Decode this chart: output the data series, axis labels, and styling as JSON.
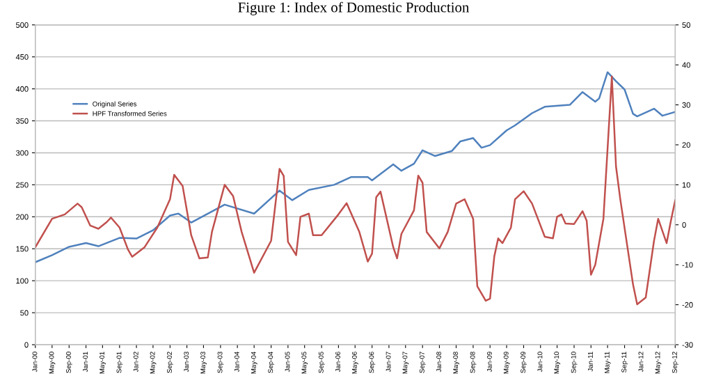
{
  "chart_data": {
    "type": "line",
    "title": "Figure 1: Index of Domestic Production",
    "xlim": [
      "2000-01",
      "2012-09"
    ],
    "xticks": [
      {
        "value": "2000-01",
        "label": "Jan-00"
      },
      {
        "value": "2000-05",
        "label": "May-00"
      },
      {
        "value": "2000-09",
        "label": "Sep-00"
      },
      {
        "value": "2001-01",
        "label": "Jan-01"
      },
      {
        "value": "2001-05",
        "label": "May-01"
      },
      {
        "value": "2001-09",
        "label": "Sep-01"
      },
      {
        "value": "2002-01",
        "label": "Jan-02"
      },
      {
        "value": "2002-05",
        "label": "May-02"
      },
      {
        "value": "2002-09",
        "label": "Sep-02"
      },
      {
        "value": "2003-01",
        "label": "Jan-03"
      },
      {
        "value": "2003-05",
        "label": "May-03"
      },
      {
        "value": "2003-09",
        "label": "Sep-03"
      },
      {
        "value": "2004-01",
        "label": "Jan-04"
      },
      {
        "value": "2004-05",
        "label": "May-04"
      },
      {
        "value": "2004-09",
        "label": "Sep-04"
      },
      {
        "value": "2005-01",
        "label": "Jan-05"
      },
      {
        "value": "2005-05",
        "label": "May-05"
      },
      {
        "value": "2005-09",
        "label": "Sep-05"
      },
      {
        "value": "2006-01",
        "label": "Jan-06"
      },
      {
        "value": "2006-05",
        "label": "May-06"
      },
      {
        "value": "2006-09",
        "label": "Sep-06"
      },
      {
        "value": "2007-01",
        "label": "Jan-07"
      },
      {
        "value": "2007-05",
        "label": "May-07"
      },
      {
        "value": "2007-09",
        "label": "Sep-07"
      },
      {
        "value": "2008-01",
        "label": "Jan-08"
      },
      {
        "value": "2008-05",
        "label": "May-08"
      },
      {
        "value": "2008-09",
        "label": "Sep-08"
      },
      {
        "value": "2009-01",
        "label": "Jan-09"
      },
      {
        "value": "2009-05",
        "label": "May-09"
      },
      {
        "value": "2009-09",
        "label": "Sep-09"
      },
      {
        "value": "2010-01",
        "label": "Jan-10"
      },
      {
        "value": "2010-05",
        "label": "May-10"
      },
      {
        "value": "2010-09",
        "label": "Sep-10"
      },
      {
        "value": "2011-01",
        "label": "Jan-11"
      },
      {
        "value": "2011-05",
        "label": "May-11"
      },
      {
        "value": "2011-09",
        "label": "Sep-11"
      },
      {
        "value": "2012-01",
        "label": "Jan-12"
      },
      {
        "value": "2012-05",
        "label": "May-12"
      },
      {
        "value": "2012-09",
        "label": "Sep-12"
      }
    ],
    "ylim": [
      0,
      500
    ],
    "yticks": [
      0,
      50,
      100,
      150,
      200,
      250,
      300,
      350,
      400,
      450,
      500
    ],
    "y2lim": [
      -30,
      50
    ],
    "y2ticks": [
      -30,
      -20,
      -10,
      0,
      10,
      20,
      30,
      40,
      50
    ],
    "grid": "y",
    "legend": "top left",
    "marker": "none",
    "line_style": "solid",
    "series": [
      {
        "name": "Original Series",
        "color": "#4f81bd",
        "x": [
          "2000-01",
          "2000-05",
          "2000-09",
          "2001-01",
          "2001-04",
          "2001-09",
          "2002-01",
          "2002-05",
          "2002-09",
          "2002-11",
          "2003-02",
          "2003-10",
          "2004-05",
          "2004-11",
          "2005-02",
          "2005-06",
          "2005-12",
          "2006-04",
          "2006-08",
          "2006-09",
          "2007-02",
          "2007-04",
          "2007-07",
          "2007-09",
          "2007-12",
          "2008-04",
          "2008-06",
          "2008-09",
          "2008-11",
          "2009-01",
          "2009-05",
          "2009-07",
          "2009-11",
          "2010-02",
          "2010-08",
          "2010-11",
          "2011-02",
          "2011-03",
          "2011-05",
          "2011-07",
          "2011-09",
          "2011-11",
          "2011-12",
          "2012-04",
          "2012-06",
          "2012-09"
        ],
        "values": [
          129,
          140,
          153,
          159,
          154,
          167,
          166,
          179,
          202,
          205,
          191,
          219,
          205,
          241,
          226,
          242,
          250,
          262,
          262,
          257,
          282,
          272,
          283,
          304,
          295,
          303,
          318,
          323,
          308,
          312,
          335,
          343,
          362,
          372,
          375,
          395,
          380,
          385,
          426,
          412,
          399,
          361,
          357,
          369,
          358,
          364
        ]
      },
      {
        "name": "HPF Transformed Series",
        "color": "#c0504d",
        "axis": "y2",
        "x": [
          "2000-01",
          "2000-05",
          "2000-08",
          "2000-11",
          "2000-12",
          "2001-02",
          "2001-04",
          "2001-06",
          "2001-07",
          "2001-09",
          "2001-11",
          "2001-12",
          "2002-03",
          "2002-06",
          "2002-09",
          "2002-10",
          "2002-12",
          "2003-02",
          "2003-04",
          "2003-06",
          "2003-07",
          "2003-10",
          "2003-12",
          "2004-02",
          "2004-05",
          "2004-09",
          "2004-11",
          "2004-12",
          "2005-01",
          "2005-03",
          "2005-04",
          "2005-06",
          "2005-07",
          "2005-09",
          "2006-01",
          "2006-03",
          "2006-06",
          "2006-08",
          "2006-09",
          "2006-10",
          "2006-11",
          "2007-02",
          "2007-03",
          "2007-04",
          "2007-07",
          "2007-08",
          "2007-09",
          "2007-10",
          "2008-01",
          "2008-03",
          "2008-05",
          "2008-07",
          "2008-09",
          "2008-10",
          "2008-12",
          "2009-01",
          "2009-02",
          "2009-03",
          "2009-04",
          "2009-06",
          "2009-07",
          "2009-09",
          "2009-11",
          "2009-12",
          "2010-02",
          "2010-04",
          "2010-05",
          "2010-06",
          "2010-07",
          "2010-09",
          "2010-11",
          "2010-12",
          "2011-01",
          "2011-02",
          "2011-04",
          "2011-06",
          "2011-07",
          "2011-08",
          "2011-11",
          "2011-12",
          "2012-02",
          "2012-04",
          "2012-05",
          "2012-07",
          "2012-08",
          "2012-09"
        ],
        "values": [
          -5.6,
          1.5,
          2.6,
          5.3,
          4.4,
          -0.2,
          -1.0,
          0.7,
          1.8,
          -0.7,
          -6.2,
          -8.0,
          -5.6,
          -0.7,
          6.4,
          12.5,
          9.7,
          -2.6,
          -8.4,
          -8.2,
          -1.8,
          10.0,
          7.2,
          -1.8,
          -12.0,
          -4.0,
          14.0,
          12.2,
          -4.3,
          -7.6,
          2.0,
          2.8,
          -2.6,
          -2.6,
          2.6,
          5.4,
          -1.8,
          -9.2,
          -7.2,
          6.9,
          8.3,
          -5.6,
          -8.4,
          -2.3,
          3.6,
          12.3,
          10.5,
          -1.8,
          -5.9,
          -1.8,
          5.3,
          6.4,
          1.5,
          -15.4,
          -19.0,
          -18.5,
          -7.9,
          -3.4,
          -4.6,
          -0.7,
          6.4,
          8.4,
          5.3,
          2.6,
          -3.0,
          -3.4,
          2.0,
          2.6,
          0.3,
          0.2,
          3.4,
          1.0,
          -12.5,
          -10.0,
          1.5,
          37.1,
          14.6,
          6.4,
          -14.9,
          -19.9,
          -18.2,
          -4.0,
          1.5,
          -4.6,
          1.0,
          6.1
        ]
      }
    ]
  }
}
